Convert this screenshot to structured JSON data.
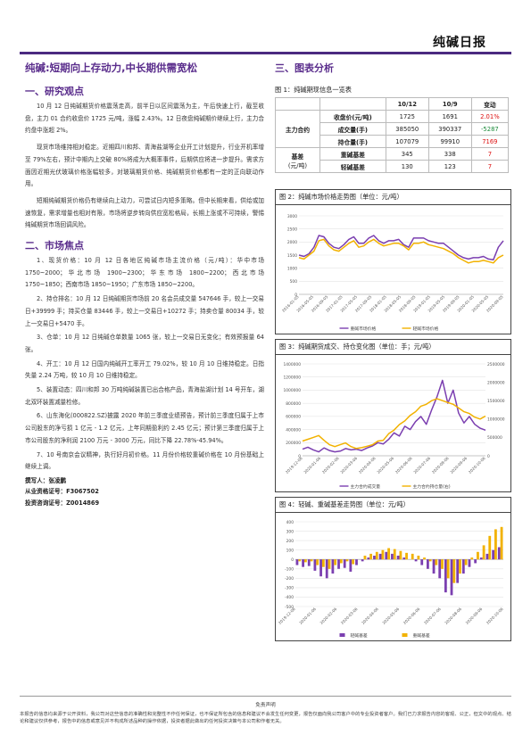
{
  "header": {
    "title": "纯碱日报",
    "bar_color": "#4b2a80"
  },
  "left": {
    "headline": "纯碱:短期向上存动力,中长期供需宽松",
    "section1_title": "一、研究观点",
    "p1": "10 月 12 日纯碱期货价格震荡走高，前半日以区间震荡为主，午后快速上行，截至收盘，主力 01 合约收盘价 1725 元/吨，涨幅 2.43%。12 日夜盘纯碱期价继续上行，主力合约盘中涨超 2%。",
    "p2": "现货市场维持相对稳定。近期四川和邦、青海盐湖等企业开工计划提升，行业开机率增至 79%左右，预计中期内上交破 80%将成为大概率事件，后期供应将进一步提升。需求方面因近期光伏玻璃价格涨幅较多，对玻璃期货价格、纯碱期货价格都有一定的正向联动作用。",
    "p3": "短期纯碱期货价格仍有继续向上动力，可尝试日内短多策略。但中长期来看，供给或加速恢复，需求增量也相对有限，市场将逆步转向供应宽松格局，长期上涨或不可持续，警惕纯碱期货市场回调风险。",
    "section2_title": "二、市场焦点",
    "m1": "1、现货价格：10 月 12 日各地区纯碱市场主流价格（元/吨）：华中市场 1750~2000；华北市场 1900~2300；华东市场 1800~2200；西北市场 1750~1850；西南市场 1850~1950；广东市场 1850~2200。",
    "m2": "2、持仓排名：10 月 12 日纯碱期货市场前 20 名会员成交量 547646 手，较上一交易日+39999 手；持买仓量 83446 手，较上一交易日+10272 手；持卖仓量 80034 手，较上一交易日+5470 手。",
    "m3": "3、仓单：10 月 12 日纯碱仓单数量 1065 张，较上一交易日无变化；有效预报量 64 张。",
    "m4": "4、开工：10 月 12 日国内纯碱开工率开工 79.02%，较 10 月 10 日维持稳定。日指失量 2.24 万吨，较 10 月 10 日维持稳定。",
    "m5": "5、装置动态：四川和邦 30 万吨纯碱装置已出合格产品，青海盐湖计划 14 号开车，湖北双环装置减量检修。",
    "m6": "6、山东海化(000822.SZ)披露 2020 年前三季度业绩预告，预计前三季度归属于上市公司股东的净亏损 1 亿元 - 1.2 亿元，上年同期盈利约 2.45 亿元；预计第三季度归属于上市公司股东的净利润 2100 万元 - 3000 万元，同比下降 22.78%-45.94%。",
    "m7": "7、10 号南京会议精神，执行好月初价格。11 月份价格较重碱价格在 10 月份基础上继续上调。",
    "author_label": "撰写人：",
    "author": "张凌鹏",
    "cert_label": "从业资格证号：",
    "cert": "F3067502",
    "invest_label": "投资咨询证号：",
    "invest": "Z0014869"
  },
  "right": {
    "section_title": "三、图表分析",
    "table_caption": "图 1：纯碱期现信息一览表",
    "table": {
      "headers": [
        "",
        "",
        "10/12",
        "10/9",
        "变动"
      ],
      "group1": "主力合约",
      "group2_line1": "基差",
      "group2_line2": "(元/吨)",
      "rows": [
        {
          "label": "收盘价(元/吨)",
          "a": "1725",
          "b": "1691",
          "c": "2.01%",
          "color": "red"
        },
        {
          "label": "成交量(手)",
          "a": "385050",
          "b": "390337",
          "c": "-5287",
          "color": "grn"
        },
        {
          "label": "持仓量(手)",
          "a": "107079",
          "b": "99910",
          "c": "7169",
          "color": "red"
        },
        {
          "label": "重碱基差",
          "a": "345",
          "b": "338",
          "c": "7",
          "color": "red"
        },
        {
          "label": "轻碱基差",
          "a": "130",
          "b": "123",
          "c": "7",
          "color": "red"
        }
      ]
    },
    "fig2_caption": "图 2：纯碱市场价格走势图（单位：元/吨）",
    "fig3_caption": "图 3：纯碱期货成交、持仓变化图（单位：手；元/吨）",
    "fig4_caption": "图 4：轻碱、重碱基差走势图（单位：元/吨）"
  },
  "chart_data": [
    {
      "type": "line",
      "title": "图 2：纯碱市场价格走势图（单位：元/吨）",
      "y_ticks": [
        "3000",
        "2500",
        "2000",
        "1500",
        "1000",
        "500",
        "0"
      ],
      "ylim": [
        0,
        3000
      ],
      "x_ticks": [
        "2016-01-05",
        "2016-05-05",
        "2016-09-05",
        "2017-01-05",
        "2017-05-05",
        "2017-09-05",
        "2018-01-05",
        "2018-05-05",
        "2018-09-05",
        "2019-01-05",
        "2019-05-05",
        "2019-09-05",
        "2020-01-05",
        "2020-05-05",
        "2020-09-05"
      ],
      "series": [
        {
          "name": "重碱市场价格",
          "color": "#7b3fb0",
          "values": [
            1500,
            1450,
            1550,
            1800,
            2250,
            2200,
            1950,
            1800,
            1750,
            1900,
            2100,
            2200,
            1950,
            1950,
            2150,
            2250,
            2050,
            1950,
            2050,
            2050,
            2100,
            1900,
            1800,
            2150,
            2150,
            2150,
            2050,
            2000,
            1950,
            1950,
            1800,
            1650,
            1500,
            1400,
            1350,
            1400,
            1400,
            1450,
            1350,
            1320,
            1800,
            2050
          ]
        },
        {
          "name": "轻碱市场价格",
          "color": "#f2b200",
          "values": [
            1400,
            1350,
            1500,
            1650,
            2050,
            2100,
            1850,
            1700,
            1650,
            1800,
            1950,
            2050,
            1800,
            1850,
            2000,
            2100,
            1950,
            1850,
            1900,
            1950,
            1950,
            1850,
            1700,
            1950,
            1950,
            2000,
            1900,
            1850,
            1800,
            1750,
            1650,
            1550,
            1400,
            1300,
            1200,
            1250,
            1250,
            1300,
            1250,
            1200,
            1400,
            1500
          ]
        }
      ]
    },
    {
      "type": "line",
      "title": "图 3：纯碱期货成交、持仓变化图（单位：手；元/吨）",
      "y_ticks": [
        "1400000",
        "1200000",
        "1000000",
        "800000",
        "600000",
        "400000",
        "200000",
        "0"
      ],
      "ylim": [
        0,
        1400000
      ],
      "y2_ticks": [
        "2500000",
        "2000000",
        "1500000",
        "1000000",
        "500000",
        "0"
      ],
      "y2lim": [
        0,
        2500000
      ],
      "x_ticks": [
        "2019-12-06",
        "2020-01-06",
        "2020-02-06",
        "2020-03-06",
        "2020-04-06",
        "2020-05-06",
        "2020-06-06",
        "2020-07-06",
        "2020-08-06",
        "2020-09-06",
        "2020-10-06"
      ],
      "series": [
        {
          "name": "主力合约成交量",
          "color": "#7b3fb0",
          "values": [
            100000,
            130000,
            90000,
            60000,
            120000,
            80000,
            60000,
            70000,
            110000,
            90000,
            100000,
            80000,
            120000,
            150000,
            200000,
            180000,
            250000,
            350000,
            300000,
            450000,
            400000,
            520000,
            600000,
            480000,
            700000,
            900000,
            1150000,
            800000,
            1000000,
            650000,
            500000,
            600000,
            480000,
            420000,
            390000
          ]
        },
        {
          "name": "主力合约持仓量(右)",
          "color": "#f2b200",
          "values": [
            400000,
            450000,
            500000,
            550000,
            420000,
            300000,
            250000,
            300000,
            350000,
            250000,
            200000,
            220000,
            260000,
            300000,
            400000,
            420000,
            600000,
            700000,
            850000,
            950000,
            1100000,
            1200000,
            1350000,
            1400000,
            1500000,
            1550000,
            1500000,
            1450000,
            1400000,
            1300000,
            1200000,
            1150000,
            1050000,
            1000000,
            1080000
          ]
        }
      ]
    },
    {
      "type": "bar",
      "title": "图 4：轻碱、重碱基差走势图（单位：元/吨）",
      "y_ticks": [
        "400",
        "300",
        "200",
        "100",
        "0",
        "-100",
        "-200",
        "-300",
        "-400",
        "-500"
      ],
      "ylim": [
        -500,
        400
      ],
      "x_ticks": [
        "2019-12-06",
        "2020-01-06",
        "2020-02-06",
        "2020-03-06",
        "2020-04-06",
        "2020-05-06",
        "2020-06-06",
        "2020-07-06",
        "2020-08-06",
        "2020-09-06",
        "2020-10-06"
      ],
      "series": [
        {
          "name": "轻碱基差",
          "color": "#7b3fb0",
          "values": [
            -60,
            -80,
            -70,
            -120,
            -180,
            -200,
            -150,
            -100,
            -90,
            -130,
            -60,
            -20,
            20,
            40,
            60,
            80,
            60,
            40,
            20,
            0,
            -20,
            -60,
            -100,
            -150,
            -200,
            -350,
            -380,
            -250,
            -150,
            -80,
            -40,
            20,
            60,
            100,
            130
          ]
        },
        {
          "name": "重碱基差",
          "color": "#f2b200",
          "values": [
            -20,
            -30,
            -20,
            -60,
            -80,
            -100,
            -60,
            -40,
            -20,
            -50,
            0,
            40,
            60,
            80,
            100,
            120,
            110,
            90,
            70,
            60,
            40,
            20,
            -20,
            -60,
            -100,
            -200,
            -250,
            -150,
            -60,
            20,
            80,
            150,
            250,
            320,
            345
          ]
        }
      ]
    }
  ],
  "footer": {
    "title": "免责声明",
    "text": "本报告的信息均来源于公开资料，我公司对这些信息的准确性和完整性不作任何保证，也不保证所包含的信息和建议不会发生任何变更，报告仅面向我公司客户中的专业投资者客户。我们已力求报告内容的客观、公正，但文中的观点、结论和建议仅供参考，报告中的信息或意见并不构成所述品种的操作依据，投资者据此做出的任何投资决策与本公司和作者无关。"
  }
}
